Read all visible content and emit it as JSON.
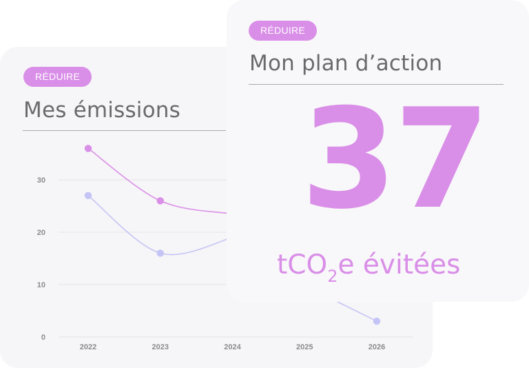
{
  "emissions_card": {
    "badge": "RÉDUIRE",
    "title": "Mes émissions"
  },
  "plan_card": {
    "badge": "RÉDUIRE",
    "title": "Mon plan d’action",
    "value": "37",
    "unit_prefix": "tCO",
    "unit_subscript": "2",
    "unit_suffix": "e  évitées"
  },
  "colors": {
    "accent": "#d98ee8",
    "series_1": "#d98ee8",
    "series_2": "#c4c4f6",
    "card_background": "#f6f5f7",
    "title_text": "#6a6a6c"
  },
  "chart_data": {
    "type": "line",
    "categories": [
      "2022",
      "2023",
      "2024",
      "2025",
      "2026"
    ],
    "series": [
      {
        "values": [
          36,
          26,
          23.5,
          null,
          null
        ]
      },
      {
        "values": [
          27,
          16,
          19,
          null,
          3
        ]
      }
    ],
    "yticks": [
      0,
      10,
      20,
      30
    ],
    "ylim": [
      0,
      40
    ],
    "grid": true
  }
}
